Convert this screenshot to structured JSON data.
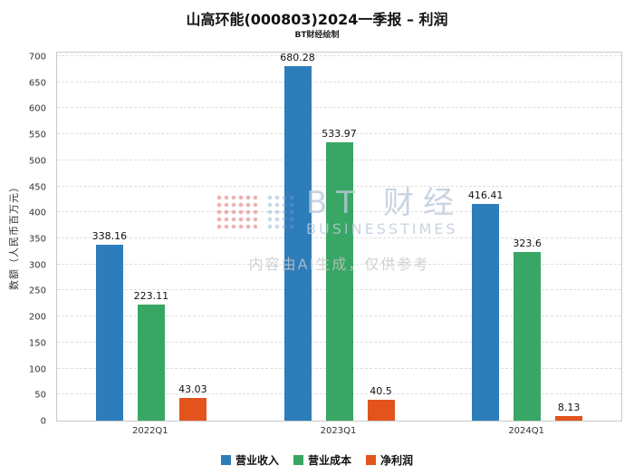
{
  "title": "山高环能(000803)2024一季报 – 利润",
  "subtitle": "BT财经绘制",
  "watermark": {
    "brand": "BT 财经",
    "brand_sub": "BUSINESSTIMES",
    "disclaimer": "内容由AI生成，仅供参考"
  },
  "chart_data": {
    "type": "bar",
    "title": "山高环能(000803)2024一季报 – 利润",
    "subtitle": "BT财经绘制",
    "categories": [
      "2022Q1",
      "2023Q1",
      "2024Q1"
    ],
    "series": [
      {
        "name": "营业收入",
        "color": "#2d7dbb",
        "values": [
          338.16,
          680.28,
          416.41
        ]
      },
      {
        "name": "营业成本",
        "color": "#38a664",
        "values": [
          223.11,
          533.97,
          323.6
        ]
      },
      {
        "name": "净利润",
        "color": "#e2541c",
        "values": [
          43.03,
          40.5,
          8.13
        ]
      }
    ],
    "xlabel": "",
    "ylabel": "数额（人民币百万元）",
    "ylim": [
      0,
      700
    ],
    "ytick_step": 50,
    "grid": true,
    "legend_position": "bottom"
  }
}
